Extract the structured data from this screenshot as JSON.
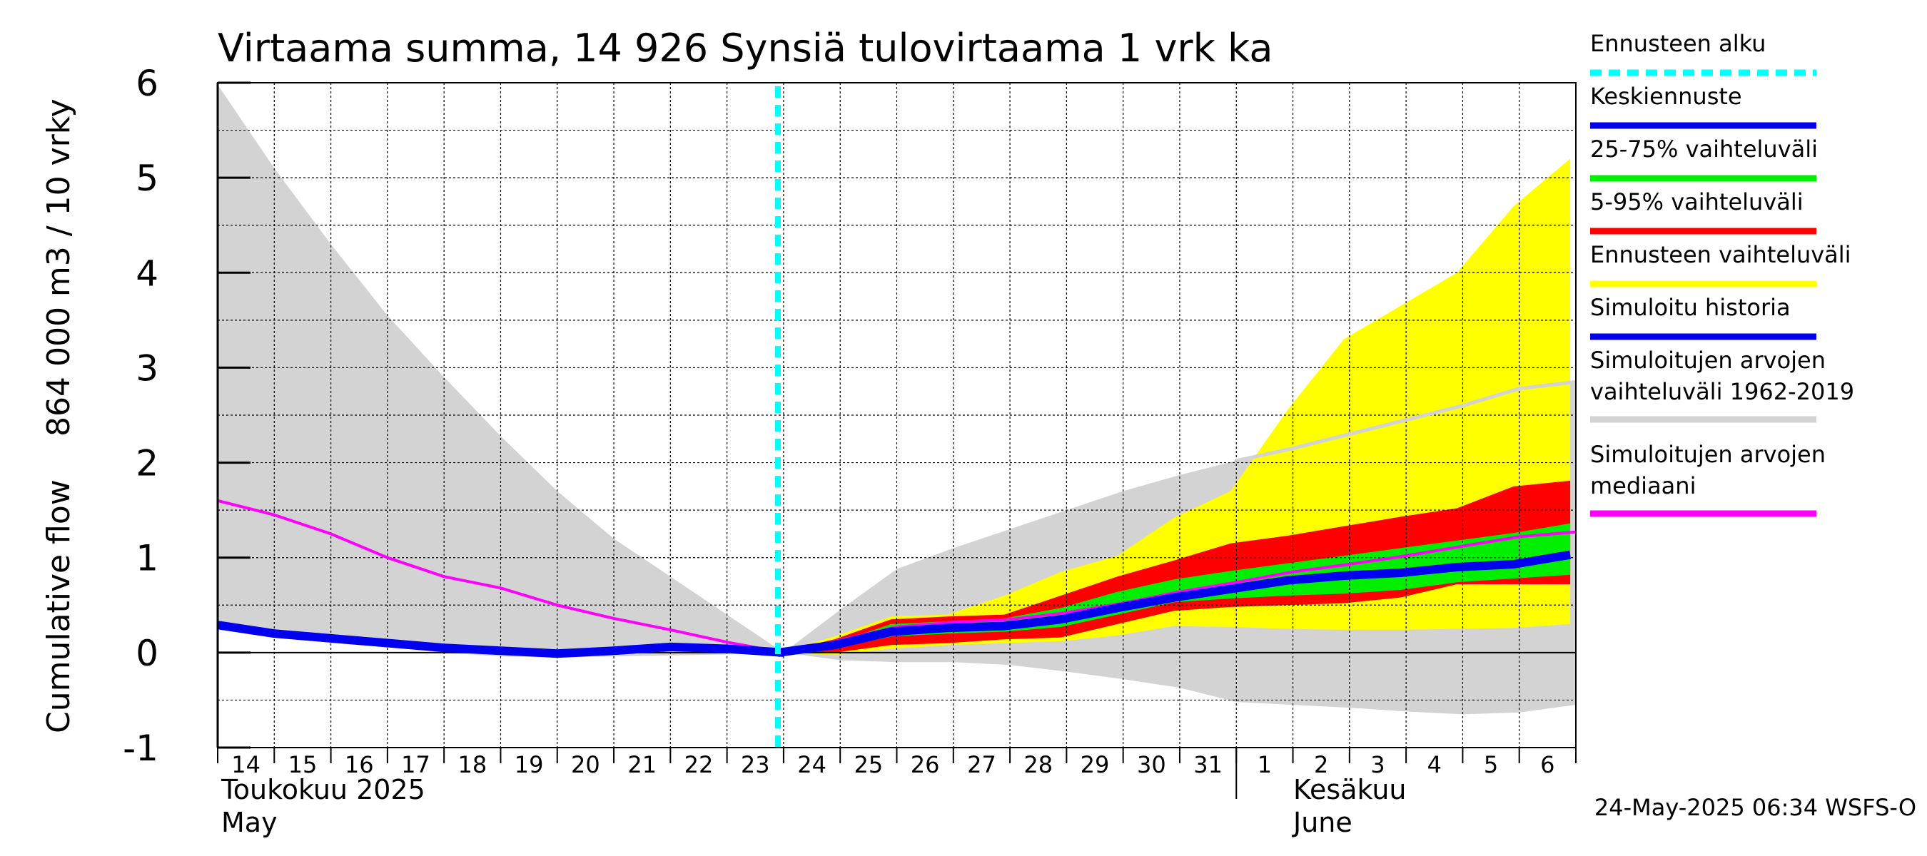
{
  "chart_data": {
    "type": "area",
    "title": "Virtaama summa, 14 926 Synsiä tulovirtaama 1 vrk ka",
    "ylabel_line1": "Cumulative flow",
    "ylabel_line2": "864 000 m3 / 10 vrky",
    "ylim": [
      -1,
      6
    ],
    "yticks": [
      "-1",
      "0",
      "1",
      "2",
      "3",
      "4",
      "5",
      "6"
    ],
    "day_labels": [
      "14",
      "15",
      "16",
      "17",
      "18",
      "19",
      "20",
      "21",
      "22",
      "23",
      "24",
      "25",
      "26",
      "27",
      "28",
      "29",
      "30",
      "31",
      "1",
      "2",
      "3",
      "4",
      "5",
      "6"
    ],
    "month_labels": {
      "may_fi": "Toukokuu  2025",
      "may_en": "May",
      "june_fi": "Kesäkuu",
      "june_en": "June"
    },
    "forecast_start_day_index": 9.9,
    "grid": true,
    "x_index": [
      0,
      1,
      2,
      3,
      4,
      5,
      6,
      7,
      8,
      9,
      10,
      11,
      12,
      13,
      14,
      15,
      16,
      17,
      18,
      19,
      20,
      21,
      22,
      23,
      24
    ],
    "series": [
      {
        "name": "Simuloitujen arvojen vaihteluväli 1962-2019",
        "role": "historical_range",
        "color": "#d3d3d3",
        "upper": [
          5.98,
          5.1,
          4.3,
          3.55,
          2.9,
          2.28,
          1.7,
          1.2,
          0.8,
          0.4,
          0.0,
          0.45,
          0.88,
          1.1,
          1.3,
          1.5,
          1.7,
          1.87,
          2.02,
          2.15,
          2.3,
          2.45,
          2.6,
          2.78,
          2.85
        ],
        "lower": [
          0.34,
          0.2,
          0.12,
          0.06,
          0.0,
          -0.04,
          -0.05,
          -0.04,
          -0.03,
          -0.02,
          0.0,
          -0.08,
          -0.1,
          -0.1,
          -0.13,
          -0.2,
          -0.28,
          -0.37,
          -0.52,
          -0.55,
          -0.58,
          -0.62,
          -0.65,
          -0.63,
          -0.55
        ]
      },
      {
        "name": "Ennusteen vaihteluväli",
        "role": "forecast_range",
        "color": "#ffff00",
        "upper": [
          0.0,
          0.17,
          0.38,
          0.4,
          0.6,
          0.85,
          1.02,
          1.42,
          1.7,
          2.55,
          3.3,
          3.65,
          4.0,
          4.7,
          5.2
        ],
        "lower": [
          0.0,
          -0.02,
          0.04,
          0.08,
          0.1,
          0.12,
          0.18,
          0.28,
          0.27,
          0.25,
          0.24,
          0.24,
          0.25,
          0.26,
          0.3
        ]
      },
      {
        "name": "5-95% vaihteluväli",
        "role": "p05_p95",
        "color": "#ff0000",
        "upper": [
          0.0,
          0.14,
          0.35,
          0.38,
          0.4,
          0.6,
          0.8,
          0.97,
          1.15,
          1.23,
          1.33,
          1.43,
          1.52,
          1.75,
          1.81
        ],
        "lower": [
          0.0,
          0.0,
          0.08,
          0.1,
          0.14,
          0.16,
          0.3,
          0.44,
          0.48,
          0.5,
          0.52,
          0.58,
          0.72,
          0.72,
          0.72
        ]
      },
      {
        "name": "25-75% vaihteluväli",
        "role": "p25_p75",
        "color": "#00ee00",
        "upper": [
          0.0,
          0.1,
          0.3,
          0.33,
          0.36,
          0.47,
          0.64,
          0.77,
          0.86,
          0.94,
          1.02,
          1.1,
          1.18,
          1.26,
          1.36
        ],
        "lower": [
          0.0,
          0.04,
          0.17,
          0.2,
          0.22,
          0.27,
          0.4,
          0.53,
          0.57,
          0.6,
          0.62,
          0.66,
          0.74,
          0.78,
          0.82
        ]
      },
      {
        "name": "Simuloitujen arvojen mediaani",
        "role": "historical_median",
        "color": "#ff00ff",
        "values": [
          1.6,
          1.45,
          1.25,
          1.0,
          0.8,
          0.68,
          0.5,
          0.36,
          0.24,
          0.11,
          0.0,
          0.13,
          0.27,
          0.32,
          0.35,
          0.42,
          0.52,
          0.64,
          0.74,
          0.85,
          0.93,
          1.02,
          1.12,
          1.22,
          1.27
        ]
      },
      {
        "name": "Simuloitu historia",
        "role": "simulated_history",
        "color": "#0000ee",
        "values": [
          0.29,
          0.2,
          0.15,
          0.1,
          0.05,
          0.02,
          -0.01,
          0.02,
          0.06,
          0.04,
          0.0
        ]
      },
      {
        "name": "Keskiennuste",
        "role": "mean_forecast",
        "color": "#0000ee",
        "values": [
          0.0,
          0.08,
          0.22,
          0.26,
          0.28,
          0.35,
          0.47,
          0.58,
          0.67,
          0.76,
          0.81,
          0.84,
          0.9,
          0.93,
          1.03
        ]
      }
    ],
    "historical_range_upper_after_overlap": {
      "color": "#d3d3d3",
      "note_line_start_index": 18,
      "values": [
        2.02,
        2.15,
        2.3,
        2.45,
        2.6,
        2.78,
        2.85
      ]
    }
  },
  "legend": [
    {
      "label": "Ennusteen alku",
      "color": "#00ffff",
      "style": "dashed"
    },
    {
      "label": "Keskiennuste",
      "color": "#0000ee",
      "style": "solid"
    },
    {
      "label": "25-75% vaihteluväli",
      "color": "#00ee00",
      "style": "solid"
    },
    {
      "label": "5-95% vaihteluväli",
      "color": "#ff0000",
      "style": "solid"
    },
    {
      "label": "Ennusteen vaihteluväli",
      "color": "#ffff00",
      "style": "solid"
    },
    {
      "label": "Simuloitu historia",
      "color": "#0000ee",
      "style": "solid"
    },
    {
      "label": "Simuloitujen arvojen",
      "label2": "vaihteluväli 1962-2019",
      "color": "#d3d3d3",
      "style": "solid"
    },
    {
      "label": "Simuloitujen arvojen",
      "label2": "mediaani",
      "color": "#ff00ff",
      "style": "solid"
    }
  ],
  "timestamp": "24-May-2025 06:34 WSFS-O"
}
